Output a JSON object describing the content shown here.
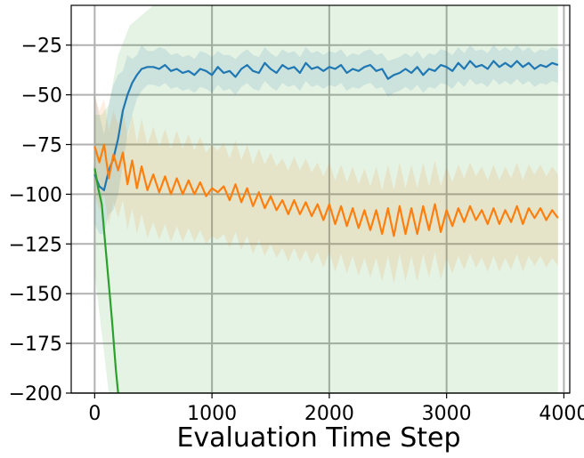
{
  "chart_data": {
    "type": "line",
    "title": "",
    "xlabel": "Evaluation Time Step",
    "ylabel": "",
    "xlim": [
      -200,
      4050
    ],
    "ylim": [
      -200,
      -5
    ],
    "grid": true,
    "legend": "none",
    "x_ticks": [
      0,
      1000,
      2000,
      3000,
      4000
    ],
    "x_tick_labels": [
      "0",
      "1000",
      "2000",
      "3000",
      "4000"
    ],
    "y_ticks": [
      -25,
      -50,
      -75,
      -100,
      -125,
      -150,
      -175,
      -200
    ],
    "y_tick_labels": [
      "−25",
      "−50",
      "−75",
      "−100",
      "−125",
      "−150",
      "−175",
      "−200"
    ],
    "series": [
      {
        "color": "#1f77b4",
        "x": [
          0,
          40,
          80,
          120,
          160,
          200,
          240,
          280,
          320,
          360,
          400,
          450,
          500,
          550,
          600,
          650,
          700,
          750,
          800,
          850,
          900,
          950,
          1000,
          1050,
          1100,
          1150,
          1200,
          1250,
          1300,
          1350,
          1400,
          1450,
          1500,
          1550,
          1600,
          1650,
          1700,
          1750,
          1800,
          1850,
          1900,
          1950,
          2000,
          2050,
          2100,
          2150,
          2200,
          2250,
          2300,
          2350,
          2400,
          2450,
          2500,
          2550,
          2600,
          2650,
          2700,
          2750,
          2800,
          2850,
          2900,
          2950,
          3000,
          3050,
          3100,
          3150,
          3200,
          3250,
          3300,
          3350,
          3400,
          3450,
          3500,
          3550,
          3600,
          3650,
          3700,
          3750,
          3800,
          3850,
          3900,
          3950
        ],
        "y": [
          -90,
          -96,
          -98,
          -88,
          -82,
          -72,
          -58,
          -50,
          -44,
          -40,
          -37,
          -36,
          -36,
          -37,
          -35,
          -38,
          -37,
          -39,
          -38,
          -40,
          -37,
          -38,
          -40,
          -36,
          -39,
          -38,
          -41,
          -37,
          -35,
          -38,
          -39,
          -34,
          -37,
          -39,
          -35,
          -37,
          -36,
          -39,
          -34,
          -37,
          -36,
          -38,
          -36,
          -37,
          -35,
          -39,
          -37,
          -38,
          -36,
          -35,
          -38,
          -37,
          -42,
          -40,
          -39,
          -37,
          -39,
          -36,
          -40,
          -37,
          -38,
          -35,
          -36,
          -38,
          -34,
          -37,
          -33,
          -36,
          -35,
          -37,
          -33,
          -36,
          -34,
          -36,
          -33,
          -36,
          -34,
          -37,
          -35,
          -36,
          -34,
          -35
        ],
        "band_upper": [
          -50,
          -60,
          -70,
          -55,
          -45,
          -40,
          -38,
          -30,
          -32,
          -30,
          -25,
          -28,
          -28,
          -26,
          -27,
          -30,
          -29,
          -31,
          -30,
          -32,
          -28,
          -29,
          -31,
          -28,
          -30,
          -30,
          -32,
          -29,
          -27,
          -30,
          -31,
          -26,
          -29,
          -31,
          -27,
          -29,
          -28,
          -31,
          -26,
          -29,
          -28,
          -30,
          -28,
          -29,
          -27,
          -31,
          -29,
          -30,
          -28,
          -27,
          -30,
          -29,
          -33,
          -32,
          -31,
          -29,
          -31,
          -28,
          -32,
          -29,
          -30,
          -27,
          -28,
          -30,
          -26,
          -29,
          -25,
          -28,
          -27,
          -29,
          -25,
          -28,
          -26,
          -28,
          -25,
          -28,
          -26,
          -29,
          -27,
          -28,
          -26,
          -27
        ],
        "band_lower": [
          -115,
          -120,
          -120,
          -110,
          -108,
          -100,
          -85,
          -70,
          -60,
          -52,
          -48,
          -45,
          -45,
          -46,
          -44,
          -47,
          -46,
          -48,
          -47,
          -49,
          -46,
          -47,
          -49,
          -45,
          -48,
          -47,
          -50,
          -46,
          -44,
          -47,
          -48,
          -43,
          -46,
          -48,
          -44,
          -46,
          -45,
          -48,
          -43,
          -46,
          -45,
          -47,
          -45,
          -46,
          -44,
          -48,
          -46,
          -47,
          -45,
          -44,
          -47,
          -46,
          -51,
          -49,
          -48,
          -46,
          -48,
          -45,
          -49,
          -46,
          -47,
          -44,
          -45,
          -47,
          -43,
          -46,
          -42,
          -45,
          -44,
          -46,
          -42,
          -45,
          -43,
          -45,
          -42,
          -45,
          -43,
          -46,
          -44,
          -45,
          -43,
          -44
        ]
      },
      {
        "color": "#ff7f0e",
        "x": [
          0,
          40,
          80,
          120,
          160,
          200,
          240,
          280,
          320,
          360,
          400,
          450,
          500,
          550,
          600,
          650,
          700,
          750,
          800,
          850,
          900,
          950,
          1000,
          1050,
          1100,
          1150,
          1200,
          1250,
          1300,
          1350,
          1400,
          1450,
          1500,
          1550,
          1600,
          1650,
          1700,
          1750,
          1800,
          1850,
          1900,
          1950,
          2000,
          2050,
          2100,
          2150,
          2200,
          2250,
          2300,
          2350,
          2400,
          2450,
          2500,
          2550,
          2600,
          2650,
          2700,
          2750,
          2800,
          2850,
          2900,
          2950,
          3000,
          3050,
          3100,
          3150,
          3200,
          3250,
          3300,
          3350,
          3400,
          3450,
          3500,
          3550,
          3600,
          3650,
          3700,
          3750,
          3800,
          3850,
          3900,
          3950
        ],
        "y": [
          -76,
          -84,
          -75,
          -92,
          -80,
          -88,
          -79,
          -95,
          -83,
          -97,
          -86,
          -98,
          -90,
          -99,
          -91,
          -100,
          -92,
          -100,
          -93,
          -100,
          -94,
          -101,
          -97,
          -99,
          -96,
          -103,
          -95,
          -104,
          -97,
          -106,
          -99,
          -107,
          -101,
          -108,
          -103,
          -110,
          -103,
          -110,
          -104,
          -111,
          -105,
          -113,
          -105,
          -115,
          -106,
          -116,
          -107,
          -117,
          -108,
          -118,
          -108,
          -120,
          -107,
          -121,
          -106,
          -120,
          -107,
          -120,
          -106,
          -118,
          -105,
          -119,
          -108,
          -116,
          -107,
          -114,
          -106,
          -113,
          -108,
          -115,
          -107,
          -115,
          -108,
          -114,
          -106,
          -115,
          -107,
          -112,
          -107,
          -113,
          -108,
          -112
        ],
        "band_upper": [
          -50,
          -58,
          -52,
          -68,
          -58,
          -65,
          -55,
          -72,
          -60,
          -74,
          -62,
          -75,
          -66,
          -76,
          -67,
          -77,
          -68,
          -77,
          -70,
          -78,
          -71,
          -79,
          -75,
          -78,
          -74,
          -82,
          -73,
          -83,
          -75,
          -85,
          -77,
          -85,
          -79,
          -86,
          -82,
          -88,
          -81,
          -88,
          -82,
          -89,
          -84,
          -91,
          -84,
          -93,
          -85,
          -94,
          -86,
          -95,
          -87,
          -96,
          -86,
          -98,
          -85,
          -98,
          -84,
          -97,
          -85,
          -97,
          -84,
          -96,
          -83,
          -96,
          -86,
          -94,
          -85,
          -92,
          -84,
          -91,
          -86,
          -93,
          -85,
          -93,
          -86,
          -92,
          -84,
          -93,
          -85,
          -90,
          -85,
          -91,
          -86,
          -90
        ],
        "band_lower": [
          -100,
          -108,
          -100,
          -116,
          -104,
          -112,
          -103,
          -118,
          -107,
          -120,
          -110,
          -122,
          -114,
          -123,
          -115,
          -124,
          -116,
          -124,
          -117,
          -124,
          -118,
          -125,
          -121,
          -123,
          -120,
          -127,
          -119,
          -128,
          -121,
          -130,
          -123,
          -131,
          -125,
          -132,
          -127,
          -134,
          -127,
          -134,
          -128,
          -135,
          -129,
          -137,
          -129,
          -139,
          -130,
          -140,
          -131,
          -141,
          -132,
          -142,
          -132,
          -144,
          -131,
          -145,
          -130,
          -144,
          -131,
          -144,
          -130,
          -142,
          -129,
          -143,
          -132,
          -140,
          -131,
          -138,
          -130,
          -137,
          -132,
          -139,
          -131,
          -139,
          -132,
          -138,
          -130,
          -139,
          -131,
          -136,
          -131,
          -137,
          -132,
          -136
        ]
      },
      {
        "color": "#2ca02c",
        "x": [
          0,
          30,
          60,
          90,
          120,
          150,
          180,
          200
        ],
        "y": [
          -87,
          -97,
          -105,
          -125,
          -145,
          -165,
          -188,
          -200
        ],
        "band": {
          "x": [
            0,
            60,
            120,
            200,
            300,
            500,
            800,
            1000,
            2000,
            3000,
            3950
          ],
          "upper": [
            -60,
            -60,
            -55,
            -30,
            -15,
            -5,
            -5,
            -5,
            -5,
            -5,
            -5
          ],
          "lower": [
            -140,
            -170,
            -200,
            -200,
            -200,
            -200,
            -200,
            -200,
            -200,
            -200,
            -200
          ]
        }
      }
    ]
  }
}
